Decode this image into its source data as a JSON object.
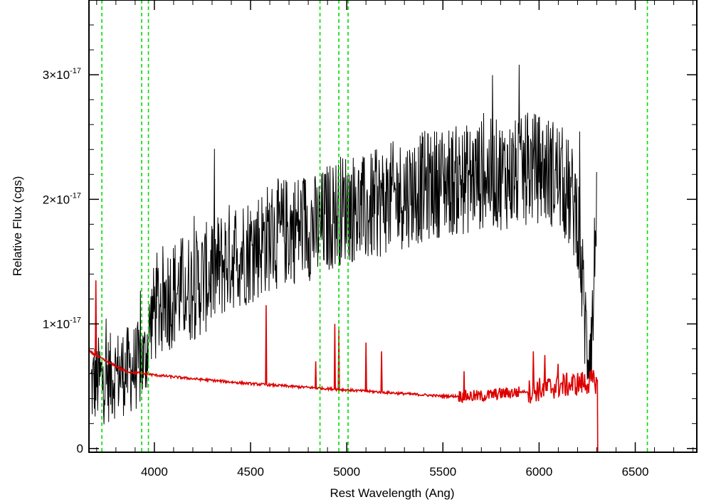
{
  "chart_data": {
    "type": "line",
    "title": "",
    "xlabel": "Rest Wavelength (Ang)",
    "ylabel": "Relative Flux (cgs)",
    "xlim": [
      3660,
      6820
    ],
    "ylim": [
      -3e-19,
      3.6e-17
    ],
    "x_ticks": [
      {
        "value": 4000,
        "label": "4000"
      },
      {
        "value": 4500,
        "label": "4500"
      },
      {
        "value": 5000,
        "label": "5000"
      },
      {
        "value": 5500,
        "label": "5500"
      },
      {
        "value": 6000,
        "label": "6000"
      },
      {
        "value": 6500,
        "label": "6500"
      }
    ],
    "y_ticks": [
      {
        "value": 0,
        "label": "0",
        "mantissa": "",
        "exponent": ""
      },
      {
        "value": 1e-17,
        "label": "1×10⁻¹⁷",
        "mantissa": "1×10",
        "exponent": "-17"
      },
      {
        "value": 2e-17,
        "label": "2×10⁻¹⁷",
        "mantissa": "2×10",
        "exponent": "-17"
      },
      {
        "value": 3e-17,
        "label": "3×10⁻¹⁷",
        "mantissa": "3×10",
        "exponent": "-17"
      }
    ],
    "grid": false,
    "legend": "none",
    "reference_lines": {
      "color": "#00dd00",
      "style": "dashed",
      "x": [
        3727,
        3934,
        3969,
        4861,
        4959,
        5007,
        6563
      ]
    },
    "series": [
      {
        "color": "#000000",
        "noise": 4.5e-18,
        "x": [
          3670,
          3700,
          3750,
          3800,
          3850,
          3900,
          3950,
          3990,
          4050,
          4100,
          4200,
          4300,
          4400,
          4500,
          4600,
          4700,
          4800,
          4850,
          4900,
          5000,
          5100,
          5200,
          5300,
          5400,
          5500,
          5600,
          5700,
          5800,
          5900,
          5950,
          6000,
          6100,
          6200,
          6230,
          6250,
          6280,
          6300
        ],
        "y_mean": [
          5e-18,
          5.5e-18,
          5.5e-18,
          6e-18,
          6.2e-18,
          6.5e-18,
          7e-18,
          1.1e-17,
          1.2e-17,
          1.25e-17,
          1.3e-17,
          1.4e-17,
          1.55e-17,
          1.6e-17,
          1.7e-17,
          1.75e-17,
          1.8e-17,
          1.75e-17,
          1.85e-17,
          1.95e-17,
          1.9e-17,
          2e-17,
          2.05e-17,
          2.1e-17,
          2.15e-17,
          2.15e-17,
          2.2e-17,
          2.2e-17,
          2.2e-17,
          2.25e-17,
          2.25e-17,
          2.2e-17,
          1.9e-17,
          1.2e-17,
          8e-18,
          1e-17,
          2.2e-17
        ]
      },
      {
        "color": "#dd0000",
        "baseline_x": [
          3660,
          3750,
          3850,
          4000,
          4200,
          4500,
          4800,
          5000,
          5200,
          5500,
          5700,
          5800,
          5950,
          6100,
          6200,
          6300
        ],
        "baseline_y": [
          7.8e-18,
          7e-18,
          6.2e-18,
          5.9e-18,
          5.6e-18,
          5.2e-18,
          4.9e-18,
          4.7e-18,
          4.5e-18,
          4.2e-18,
          4.2e-18,
          4.4e-18,
          4.6e-18,
          5e-18,
          5.2e-18,
          5.4e-18
        ],
        "spikes": [
          {
            "x": 3695,
            "y": 1.35e-17
          },
          {
            "x": 4580,
            "y": 1.15e-17
          },
          {
            "x": 4840,
            "y": 7e-18
          },
          {
            "x": 4937,
            "y": 1e-17
          },
          {
            "x": 4958,
            "y": 9.5e-18
          },
          {
            "x": 5100,
            "y": 8.5e-18
          },
          {
            "x": 5180,
            "y": 7.8e-18
          },
          {
            "x": 5610,
            "y": 6.2e-18
          },
          {
            "x": 5970,
            "y": 7.8e-18
          },
          {
            "x": 6030,
            "y": 7.5e-18
          },
          {
            "x": 6100,
            "y": 6.8e-18
          }
        ],
        "drop_at": 6305,
        "tail_x": [
          6305,
          6820
        ],
        "tail_y": [
          -3e-19,
          -3e-19
        ]
      }
    ]
  }
}
